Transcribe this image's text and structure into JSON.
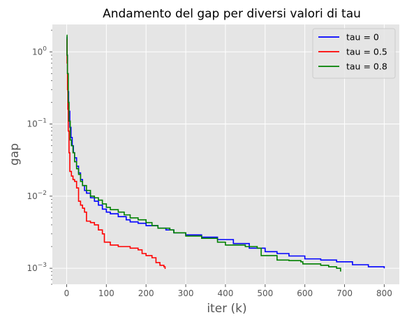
{
  "chart_data": {
    "type": "line",
    "title": "Andamento del gap per diversi valori di tau",
    "xlabel": "iter (k)",
    "ylabel": "gap",
    "xlim": [
      -36,
      838
    ],
    "ylim": [
      0.0006,
      2.4
    ],
    "yscale": "log",
    "grid": true,
    "legend_position": "top-right",
    "x_ticks": [
      0,
      100,
      200,
      300,
      400,
      500,
      600,
      700,
      800
    ],
    "x_tick_labels": [
      "0",
      "100",
      "200",
      "300",
      "400",
      "500",
      "600",
      "700",
      "800"
    ],
    "y_ticks": [
      0.001,
      0.01,
      0.1,
      1
    ],
    "y_tick_labels": [
      {
        "base": "10",
        "exp": "−3"
      },
      {
        "base": "10",
        "exp": "−2"
      },
      {
        "base": "10",
        "exp": "−1"
      },
      {
        "base": "10",
        "exp": "0"
      }
    ],
    "series": [
      {
        "name": "tau = 0",
        "color": "#0000ff",
        "points": [
          [
            0,
            1.6
          ],
          [
            1,
            0.9
          ],
          [
            2,
            0.5
          ],
          [
            3,
            0.28
          ],
          [
            5,
            0.15
          ],
          [
            8,
            0.09
          ],
          [
            11,
            0.065
          ],
          [
            14,
            0.05
          ],
          [
            17,
            0.04
          ],
          [
            20,
            0.034
          ],
          [
            25,
            0.026
          ],
          [
            30,
            0.021
          ],
          [
            35,
            0.017
          ],
          [
            40,
            0.014
          ],
          [
            45,
            0.012
          ],
          [
            50,
            0.011
          ],
          [
            60,
            0.0095
          ],
          [
            70,
            0.0085
          ],
          [
            80,
            0.0075
          ],
          [
            90,
            0.0066
          ],
          [
            100,
            0.006
          ],
          [
            110,
            0.0057
          ],
          [
            130,
            0.0052
          ],
          [
            150,
            0.0047
          ],
          [
            160,
            0.0044
          ],
          [
            180,
            0.0042
          ],
          [
            200,
            0.0039
          ],
          [
            230,
            0.0036
          ],
          [
            250,
            0.0034
          ],
          [
            270,
            0.0031
          ],
          [
            300,
            0.0029
          ],
          [
            340,
            0.0027
          ],
          [
            380,
            0.0025
          ],
          [
            420,
            0.0022
          ],
          [
            460,
            0.0019
          ],
          [
            500,
            0.0017
          ],
          [
            530,
            0.0016
          ],
          [
            560,
            0.00148
          ],
          [
            600,
            0.00135
          ],
          [
            640,
            0.0013
          ],
          [
            680,
            0.00123
          ],
          [
            720,
            0.00112
          ],
          [
            760,
            0.00105
          ],
          [
            800,
            0.001
          ]
        ]
      },
      {
        "name": "tau = 0.5",
        "color": "#ff0000",
        "points": [
          [
            0,
            1.5
          ],
          [
            1,
            0.7
          ],
          [
            2,
            0.3
          ],
          [
            3,
            0.16
          ],
          [
            4,
            0.08
          ],
          [
            6,
            0.04
          ],
          [
            8,
            0.022
          ],
          [
            12,
            0.019
          ],
          [
            16,
            0.017
          ],
          [
            20,
            0.016
          ],
          [
            25,
            0.013
          ],
          [
            30,
            0.0085
          ],
          [
            35,
            0.0075
          ],
          [
            40,
            0.0068
          ],
          [
            45,
            0.006
          ],
          [
            50,
            0.0045
          ],
          [
            60,
            0.0043
          ],
          [
            70,
            0.004
          ],
          [
            80,
            0.0034
          ],
          [
            90,
            0.003
          ],
          [
            95,
            0.0023
          ],
          [
            110,
            0.0021
          ],
          [
            130,
            0.002
          ],
          [
            160,
            0.0019
          ],
          [
            180,
            0.0018
          ],
          [
            190,
            0.0016
          ],
          [
            200,
            0.0015
          ],
          [
            215,
            0.0014
          ],
          [
            225,
            0.0012
          ],
          [
            235,
            0.0011
          ],
          [
            245,
            0.00105
          ],
          [
            248,
            0.00098
          ]
        ]
      },
      {
        "name": "tau = 0.8",
        "color": "#008000",
        "points": [
          [
            0,
            1.7
          ],
          [
            1,
            0.9
          ],
          [
            2,
            0.5
          ],
          [
            4,
            0.2
          ],
          [
            6,
            0.11
          ],
          [
            9,
            0.06
          ],
          [
            12,
            0.05
          ],
          [
            16,
            0.04
          ],
          [
            20,
            0.03
          ],
          [
            25,
            0.024
          ],
          [
            30,
            0.02
          ],
          [
            35,
            0.016
          ],
          [
            40,
            0.014
          ],
          [
            50,
            0.012
          ],
          [
            60,
            0.01
          ],
          [
            70,
            0.0095
          ],
          [
            80,
            0.0088
          ],
          [
            90,
            0.0078
          ],
          [
            100,
            0.007
          ],
          [
            110,
            0.0065
          ],
          [
            130,
            0.006
          ],
          [
            145,
            0.0055
          ],
          [
            160,
            0.005
          ],
          [
            180,
            0.0047
          ],
          [
            200,
            0.0043
          ],
          [
            215,
            0.0039
          ],
          [
            230,
            0.0036
          ],
          [
            260,
            0.0034
          ],
          [
            270,
            0.0031
          ],
          [
            300,
            0.0028
          ],
          [
            340,
            0.0026
          ],
          [
            380,
            0.0023
          ],
          [
            400,
            0.0021
          ],
          [
            450,
            0.002
          ],
          [
            480,
            0.0019
          ],
          [
            490,
            0.0015
          ],
          [
            530,
            0.0013
          ],
          [
            560,
            0.00128
          ],
          [
            590,
            0.00123
          ],
          [
            595,
            0.00115
          ],
          [
            640,
            0.0011
          ],
          [
            660,
            0.00105
          ],
          [
            680,
            0.001
          ],
          [
            690,
            0.0009
          ]
        ]
      }
    ]
  }
}
